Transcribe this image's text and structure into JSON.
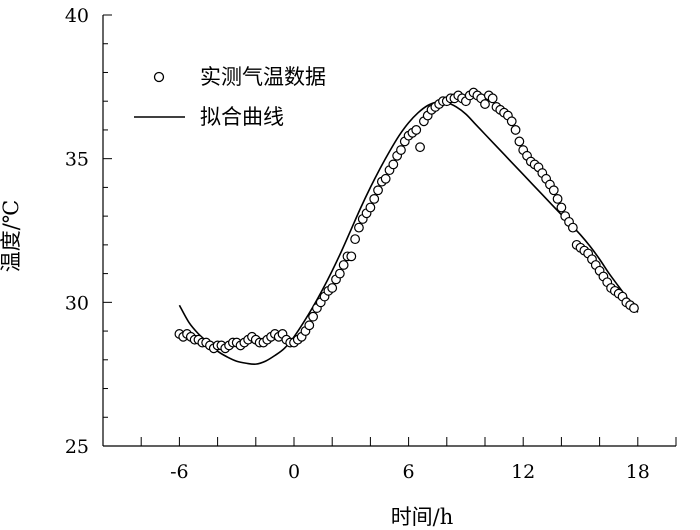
{
  "chart_data": {
    "type": "scatter",
    "xlabel": "时间/h",
    "ylabel": "温度/℃",
    "xlim": [
      -10,
      20
    ],
    "ylim": [
      25,
      40
    ],
    "xticks": [
      -6,
      0,
      6,
      12,
      18
    ],
    "yticks": [
      25,
      30,
      35,
      40
    ],
    "grid": false,
    "legend_position": "top-left",
    "legend": {
      "measured": "实测气温数据",
      "fit": "拟合曲线"
    },
    "series": [
      {
        "name": "实测气温数据",
        "kind": "markers",
        "x": [
          -6.0,
          -5.8,
          -5.6,
          -5.4,
          -5.2,
          -5.0,
          -4.8,
          -4.6,
          -4.4,
          -4.2,
          -4.0,
          -3.8,
          -3.6,
          -3.4,
          -3.2,
          -3.0,
          -2.8,
          -2.6,
          -2.4,
          -2.2,
          -2.0,
          -1.8,
          -1.6,
          -1.4,
          -1.2,
          -1.0,
          -0.8,
          -0.6,
          -0.4,
          -0.2,
          0.0,
          0.2,
          0.4,
          0.6,
          0.8,
          1.0,
          1.2,
          1.4,
          1.6,
          1.8,
          2.0,
          2.2,
          2.4,
          2.6,
          2.8,
          3.0,
          3.2,
          3.4,
          3.6,
          3.8,
          4.0,
          4.2,
          4.4,
          4.6,
          4.8,
          5.0,
          5.2,
          5.4,
          5.6,
          5.8,
          6.0,
          6.2,
          6.4,
          6.6,
          6.8,
          7.0,
          7.2,
          7.4,
          7.6,
          7.8,
          8.0,
          8.2,
          8.4,
          8.6,
          8.8,
          9.0,
          9.2,
          9.4,
          9.6,
          9.8,
          10.0,
          10.2,
          10.4,
          10.6,
          10.8,
          11.0,
          11.2,
          11.4,
          11.6,
          11.8,
          12.0,
          12.2,
          12.4,
          12.6,
          12.8,
          13.0,
          13.2,
          13.4,
          13.6,
          13.8,
          14.0,
          14.2,
          14.4,
          14.6,
          14.8,
          15.0,
          15.2,
          15.4,
          15.6,
          15.8,
          16.0,
          16.2,
          16.4,
          16.6,
          16.8,
          17.0,
          17.2,
          17.4,
          17.6,
          17.8
        ],
        "y": [
          28.9,
          28.8,
          28.9,
          28.8,
          28.7,
          28.7,
          28.6,
          28.6,
          28.5,
          28.4,
          28.5,
          28.5,
          28.4,
          28.5,
          28.6,
          28.6,
          28.5,
          28.6,
          28.7,
          28.8,
          28.7,
          28.6,
          28.6,
          28.7,
          28.8,
          28.9,
          28.8,
          28.9,
          28.7,
          28.6,
          28.6,
          28.7,
          28.8,
          29.0,
          29.2,
          29.5,
          29.8,
          30.0,
          30.2,
          30.4,
          30.5,
          30.8,
          31.0,
          31.3,
          31.6,
          31.6,
          32.2,
          32.6,
          32.9,
          33.1,
          33.3,
          33.6,
          33.9,
          34.2,
          34.3,
          34.6,
          34.8,
          35.1,
          35.3,
          35.6,
          35.8,
          35.9,
          36.0,
          35.4,
          36.3,
          36.5,
          36.7,
          36.8,
          36.9,
          37.0,
          37.0,
          37.1,
          37.1,
          37.2,
          37.1,
          37.0,
          37.2,
          37.3,
          37.2,
          37.1,
          36.9,
          37.2,
          37.1,
          36.8,
          36.7,
          36.6,
          36.5,
          36.3,
          36.0,
          35.6,
          35.3,
          35.1,
          34.9,
          34.8,
          34.7,
          34.5,
          34.3,
          34.1,
          33.9,
          33.6,
          33.3,
          33.0,
          32.8,
          32.6,
          32.0,
          31.9,
          31.8,
          31.7,
          31.5,
          31.3,
          31.1,
          30.9,
          30.7,
          30.5,
          30.4,
          30.3,
          30.2,
          30.0,
          29.9,
          29.8
        ]
      },
      {
        "name": "拟合曲线",
        "kind": "line",
        "x": [
          -6.0,
          -5.5,
          -5.0,
          -4.5,
          -4.0,
          -3.5,
          -3.0,
          -2.5,
          -2.0,
          -1.5,
          -1.0,
          -0.5,
          0.0,
          0.5,
          1.0,
          1.5,
          2.0,
          2.5,
          3.0,
          3.5,
          4.0,
          4.5,
          5.0,
          5.5,
          6.0,
          6.5,
          7.0,
          7.5,
          8.0,
          8.5,
          9.0,
          9.5,
          10.0,
          10.5,
          11.0,
          11.5,
          12.0,
          12.5,
          13.0,
          13.5,
          14.0,
          14.5,
          15.0,
          15.5,
          16.0,
          16.5,
          17.0,
          17.5,
          18.0
        ],
        "y": [
          29.9,
          29.3,
          28.9,
          28.6,
          28.3,
          28.1,
          27.95,
          27.88,
          27.85,
          27.95,
          28.15,
          28.4,
          28.8,
          29.3,
          29.85,
          30.45,
          31.1,
          31.8,
          32.55,
          33.3,
          34.0,
          34.65,
          35.25,
          35.8,
          36.25,
          36.6,
          36.85,
          36.97,
          36.95,
          36.8,
          36.55,
          36.2,
          35.85,
          35.5,
          35.15,
          34.8,
          34.45,
          34.1,
          33.75,
          33.4,
          33.05,
          32.7,
          32.35,
          31.95,
          31.5,
          31.0,
          30.55,
          30.1,
          29.65
        ]
      }
    ]
  }
}
